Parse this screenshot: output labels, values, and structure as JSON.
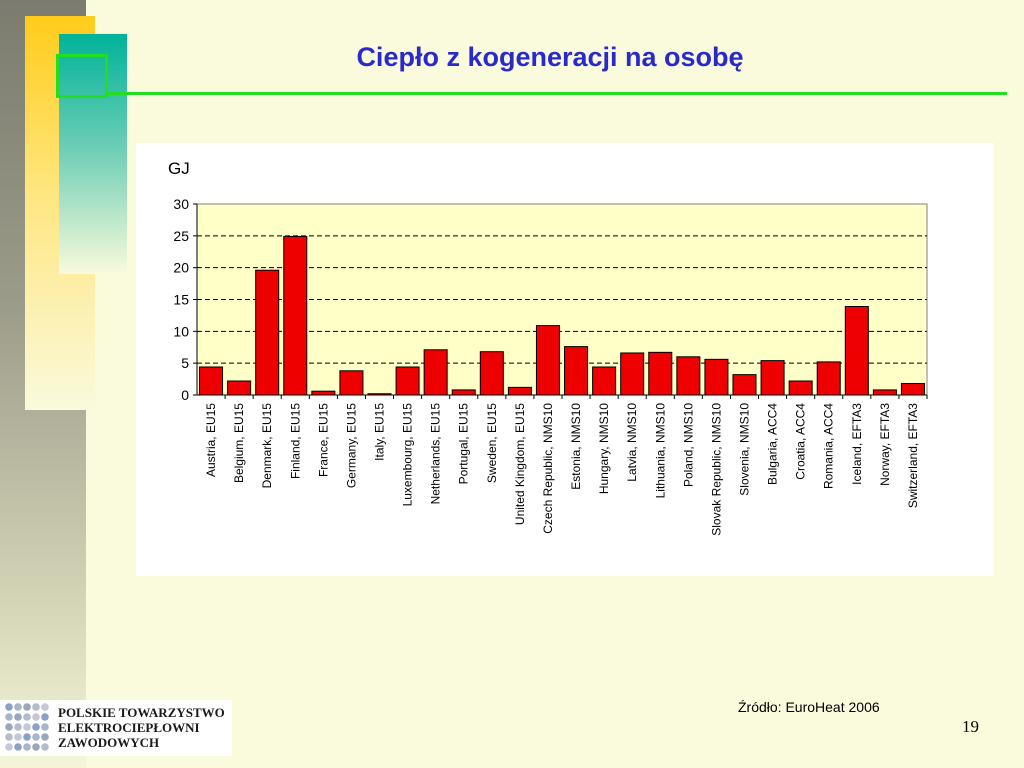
{
  "slide": {
    "title": "Ciepło z kogeneracji na osobę",
    "unit_label": "GJ",
    "source": "Źródło: EuroHeat 2006",
    "page_number": "19",
    "logo_lines": [
      "POLSKIE TOWARZYSTWO",
      "ELEKTROCIEPŁOWNI",
      "ZAWODOWYCH"
    ]
  },
  "colors": {
    "background": "#fafadc",
    "title": "#2a2acc",
    "accent_line": "#22dd22",
    "plot_area": "#ffffc8",
    "bar": "#ee0000"
  },
  "chart_data": {
    "type": "bar",
    "title": "",
    "xlabel": "",
    "ylabel": "GJ",
    "ylim": [
      0,
      30
    ],
    "yticks": [
      0,
      5,
      10,
      15,
      20,
      25,
      30
    ],
    "grid": "horizontal dashed",
    "legend": "none",
    "categories": [
      "Austria, EU15",
      "Belgium, EU15",
      "Denmark, EU15",
      "Finland, EU15",
      "France, EU15",
      "Germany, EU15",
      "Italy, EU15",
      "Luxembourg, EU15",
      "Netherlands, EU15",
      "Portugal, EU15",
      "Sweden, EU15",
      "United Kingdom, EU15",
      "Czech Republic, NMS10",
      "Estonia, NMS10",
      "Hungary, NMS10",
      "Latvia, NMS10",
      "Lithuania, NMS10",
      "Poland, NMS10",
      "Slovak Republic, NMS10",
      "Slovenia, NMS10",
      "Bulgaria, ACC4",
      "Croatia, ACC4",
      "Romania, ACC4",
      "Iceland, EFTA3",
      "Norway, EFTA3",
      "Switzerland, EFTA3"
    ],
    "values": [
      4.4,
      2.2,
      19.6,
      24.9,
      0.6,
      3.8,
      0.2,
      4.4,
      7.1,
      0.8,
      6.8,
      1.2,
      10.9,
      7.6,
      4.4,
      6.6,
      6.7,
      6.0,
      5.6,
      3.2,
      5.4,
      2.2,
      5.2,
      13.9,
      0.8,
      1.8
    ]
  }
}
